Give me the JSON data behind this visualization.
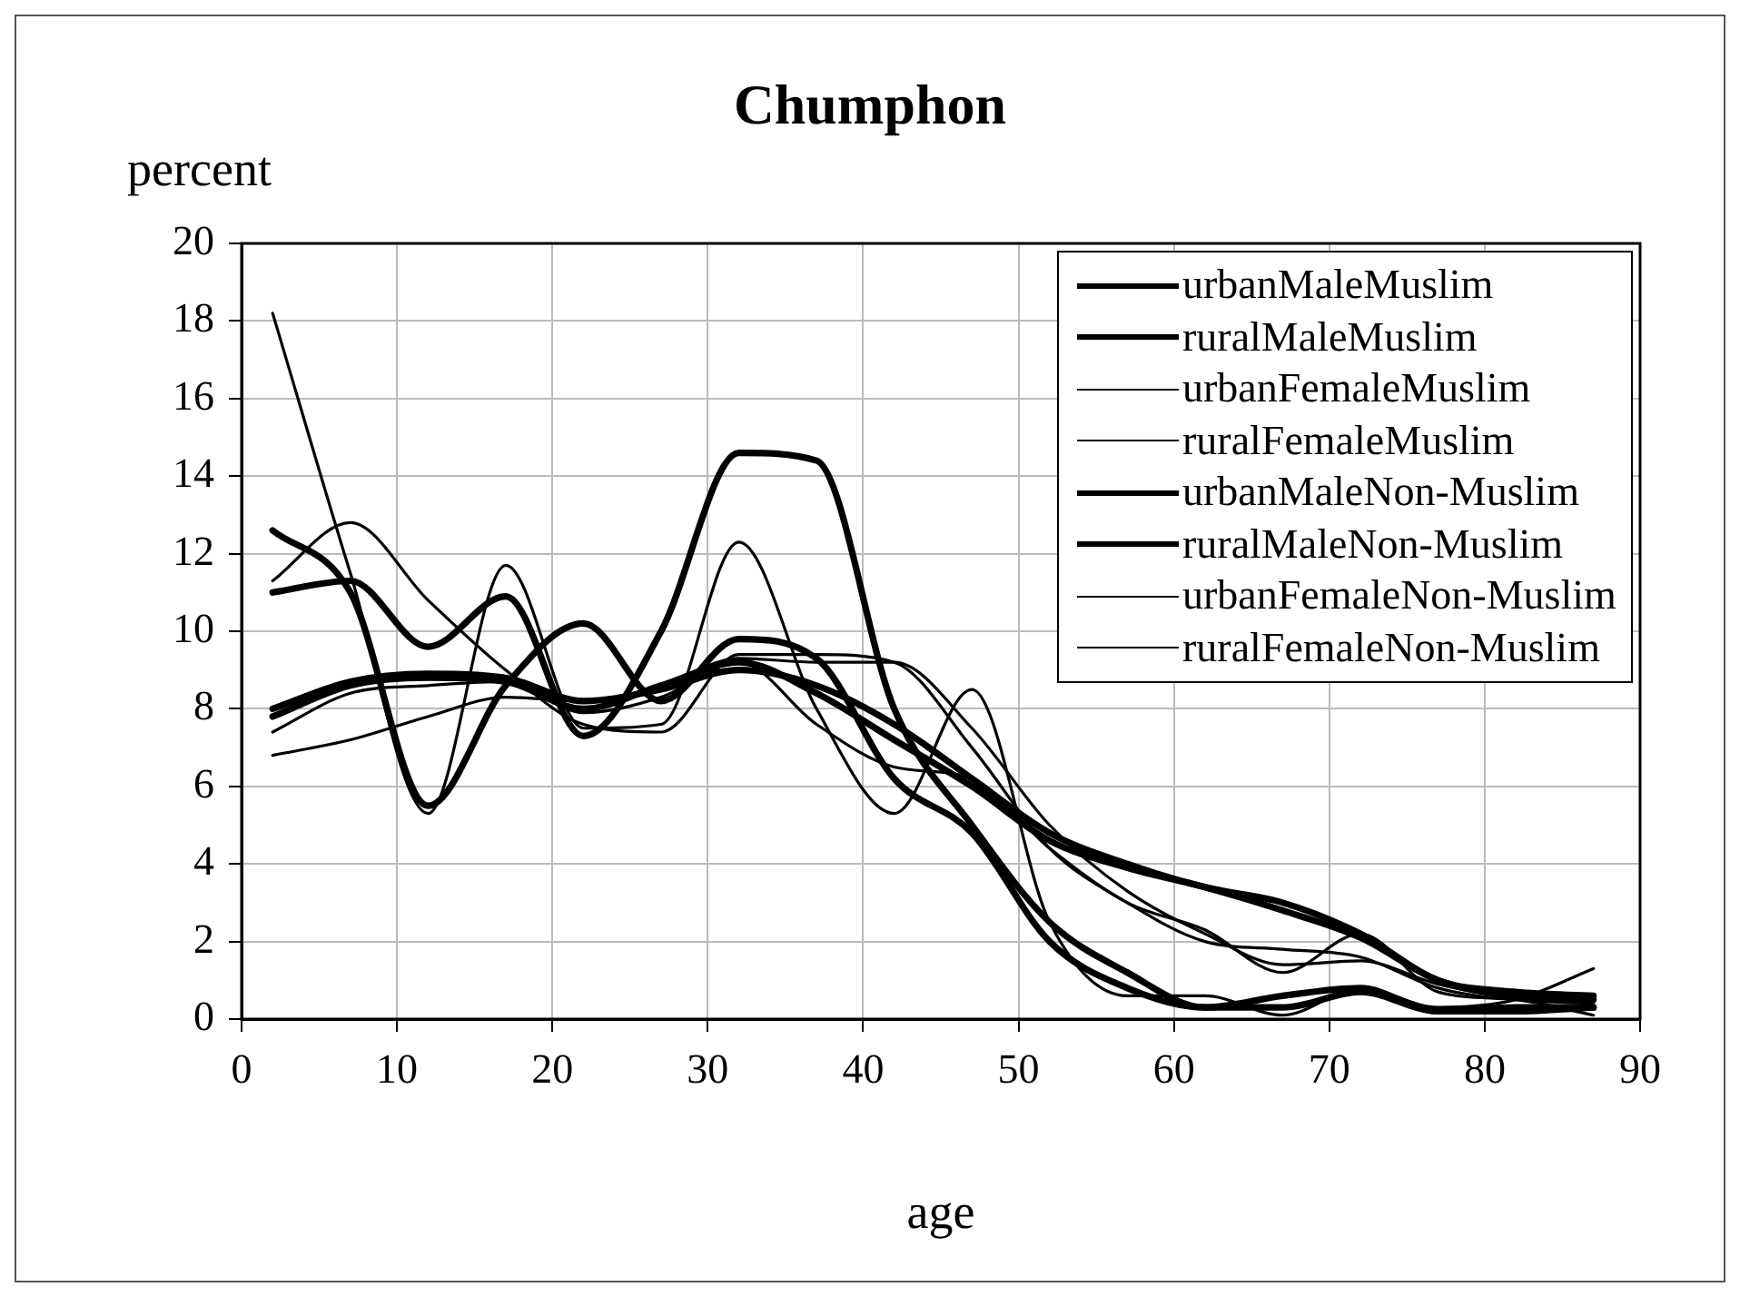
{
  "chart_data": {
    "type": "line",
    "title": "Chumphon",
    "xlabel": "age",
    "ylabel": "percent",
    "x": [
      2,
      7,
      12,
      17,
      22,
      27,
      32,
      37,
      42,
      47,
      52,
      57,
      62,
      67,
      72,
      77,
      82,
      87
    ],
    "xlim": [
      0,
      90
    ],
    "xticks": [
      0,
      10,
      20,
      30,
      40,
      50,
      60,
      70,
      80,
      90
    ],
    "ylim": [
      0,
      20
    ],
    "yticks": [
      0,
      2,
      4,
      6,
      8,
      10,
      12,
      14,
      16,
      18,
      20
    ],
    "grid": true,
    "legend": "top right",
    "marker": "none",
    "line_style": "solid",
    "series": [
      {
        "name": "urbanMaleMuslim",
        "color": "#000000",
        "values": [
          7.8,
          8.6,
          8.8,
          8.7,
          8.0,
          8.6,
          9.2,
          8.4,
          7.2,
          6.0,
          4.6,
          3.9,
          3.4,
          2.8,
          2.1,
          1.0,
          0.6,
          0.5
        ]
      },
      {
        "name": "ruralMaleMuslim",
        "color": "#000000",
        "values": [
          12.6,
          11.0,
          5.5,
          8.6,
          10.2,
          8.2,
          9.8,
          9.3,
          6.2,
          4.8,
          2.0,
          0.8,
          0.3,
          0.3,
          0.7,
          0.2,
          0.3,
          0.3
        ]
      },
      {
        "name": "urbanFemaleMuslim",
        "color": "#000000",
        "values": [
          11.3,
          12.8,
          10.8,
          9.0,
          7.6,
          7.4,
          9.4,
          9.4,
          9.2,
          7.0,
          4.4,
          3.0,
          2.0,
          1.8,
          1.6,
          0.8,
          0.5,
          0.4
        ]
      },
      {
        "name": "ruralFemaleMuslim",
        "color": "#000000",
        "values": [
          18.2,
          11.5,
          5.3,
          11.7,
          7.5,
          7.6,
          12.3,
          8.0,
          5.3,
          8.5,
          2.5,
          0.6,
          0.6,
          0.1,
          0.8,
          0.3,
          0.5,
          1.3
        ]
      },
      {
        "name": "urbanMaleNon-Muslim",
        "color": "#000000",
        "values": [
          11.0,
          11.3,
          9.6,
          10.9,
          7.3,
          10.0,
          14.6,
          14.4,
          8.0,
          5.0,
          2.5,
          1.2,
          0.3,
          0.6,
          0.8,
          0.2,
          0.2,
          0.3
        ]
      },
      {
        "name": "ruralMaleNon-Muslim",
        "color": "#000000",
        "values": [
          8.0,
          8.7,
          8.9,
          8.8,
          8.2,
          8.5,
          9.0,
          8.6,
          7.6,
          6.2,
          4.8,
          4.0,
          3.4,
          3.0,
          2.2,
          1.0,
          0.7,
          0.6
        ]
      },
      {
        "name": "urbanFemaleNon-Muslim",
        "color": "#000000",
        "values": [
          6.8,
          7.2,
          7.8,
          8.3,
          8.2,
          8.6,
          9.3,
          9.2,
          9.2,
          7.5,
          5.0,
          3.3,
          2.2,
          1.4,
          1.5,
          0.9,
          0.6,
          0.6
        ]
      },
      {
        "name": "ruralFemaleNon-Muslim",
        "color": "#000000",
        "values": [
          7.4,
          8.4,
          8.6,
          8.7,
          7.9,
          8.3,
          9.2,
          7.6,
          6.5,
          6.2,
          4.4,
          3.0,
          2.3,
          1.2,
          2.2,
          0.7,
          0.5,
          0.1
        ]
      }
    ]
  }
}
